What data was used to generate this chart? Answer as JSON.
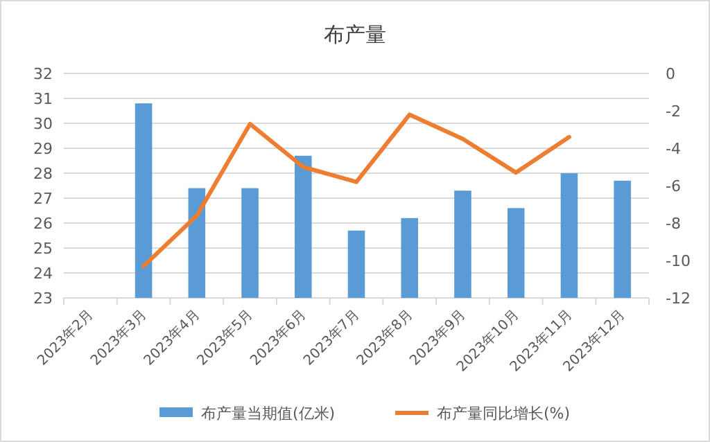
{
  "chart_data": {
    "type": "bar",
    "title": "布产量",
    "categories": [
      "2023年2月",
      "2023年3月",
      "2023年4月",
      "2023年5月",
      "2023年6月",
      "2023年7月",
      "2023年8月",
      "2023年9月",
      "2023年10月",
      "2023年11月",
      "2023年12月"
    ],
    "series": [
      {
        "name": "布产量当期值(亿米)",
        "color": "#5b9bd5",
        "values": [
          null,
          30.8,
          27.4,
          27.4,
          28.7,
          25.7,
          26.2,
          27.3,
          26.6,
          28.0,
          27.7
        ]
      },
      {
        "name": "布产量同比增长(%)",
        "type": "line",
        "axis": "y2",
        "color": "#ed7d31",
        "values": [
          null,
          -10.3,
          -7.6,
          -2.7,
          -5.0,
          -5.8,
          -2.2,
          -3.5,
          -5.3,
          -3.4,
          null
        ]
      }
    ],
    "ylim": [
      23,
      32
    ],
    "yticks": [
      23,
      24,
      25,
      26,
      27,
      28,
      29,
      30,
      31,
      32
    ],
    "y2lim": [
      -12,
      0
    ],
    "y2ticks": [
      -12,
      -10,
      -8,
      -6,
      -4,
      -2,
      0
    ],
    "grid": "y",
    "legend": "bottom"
  }
}
